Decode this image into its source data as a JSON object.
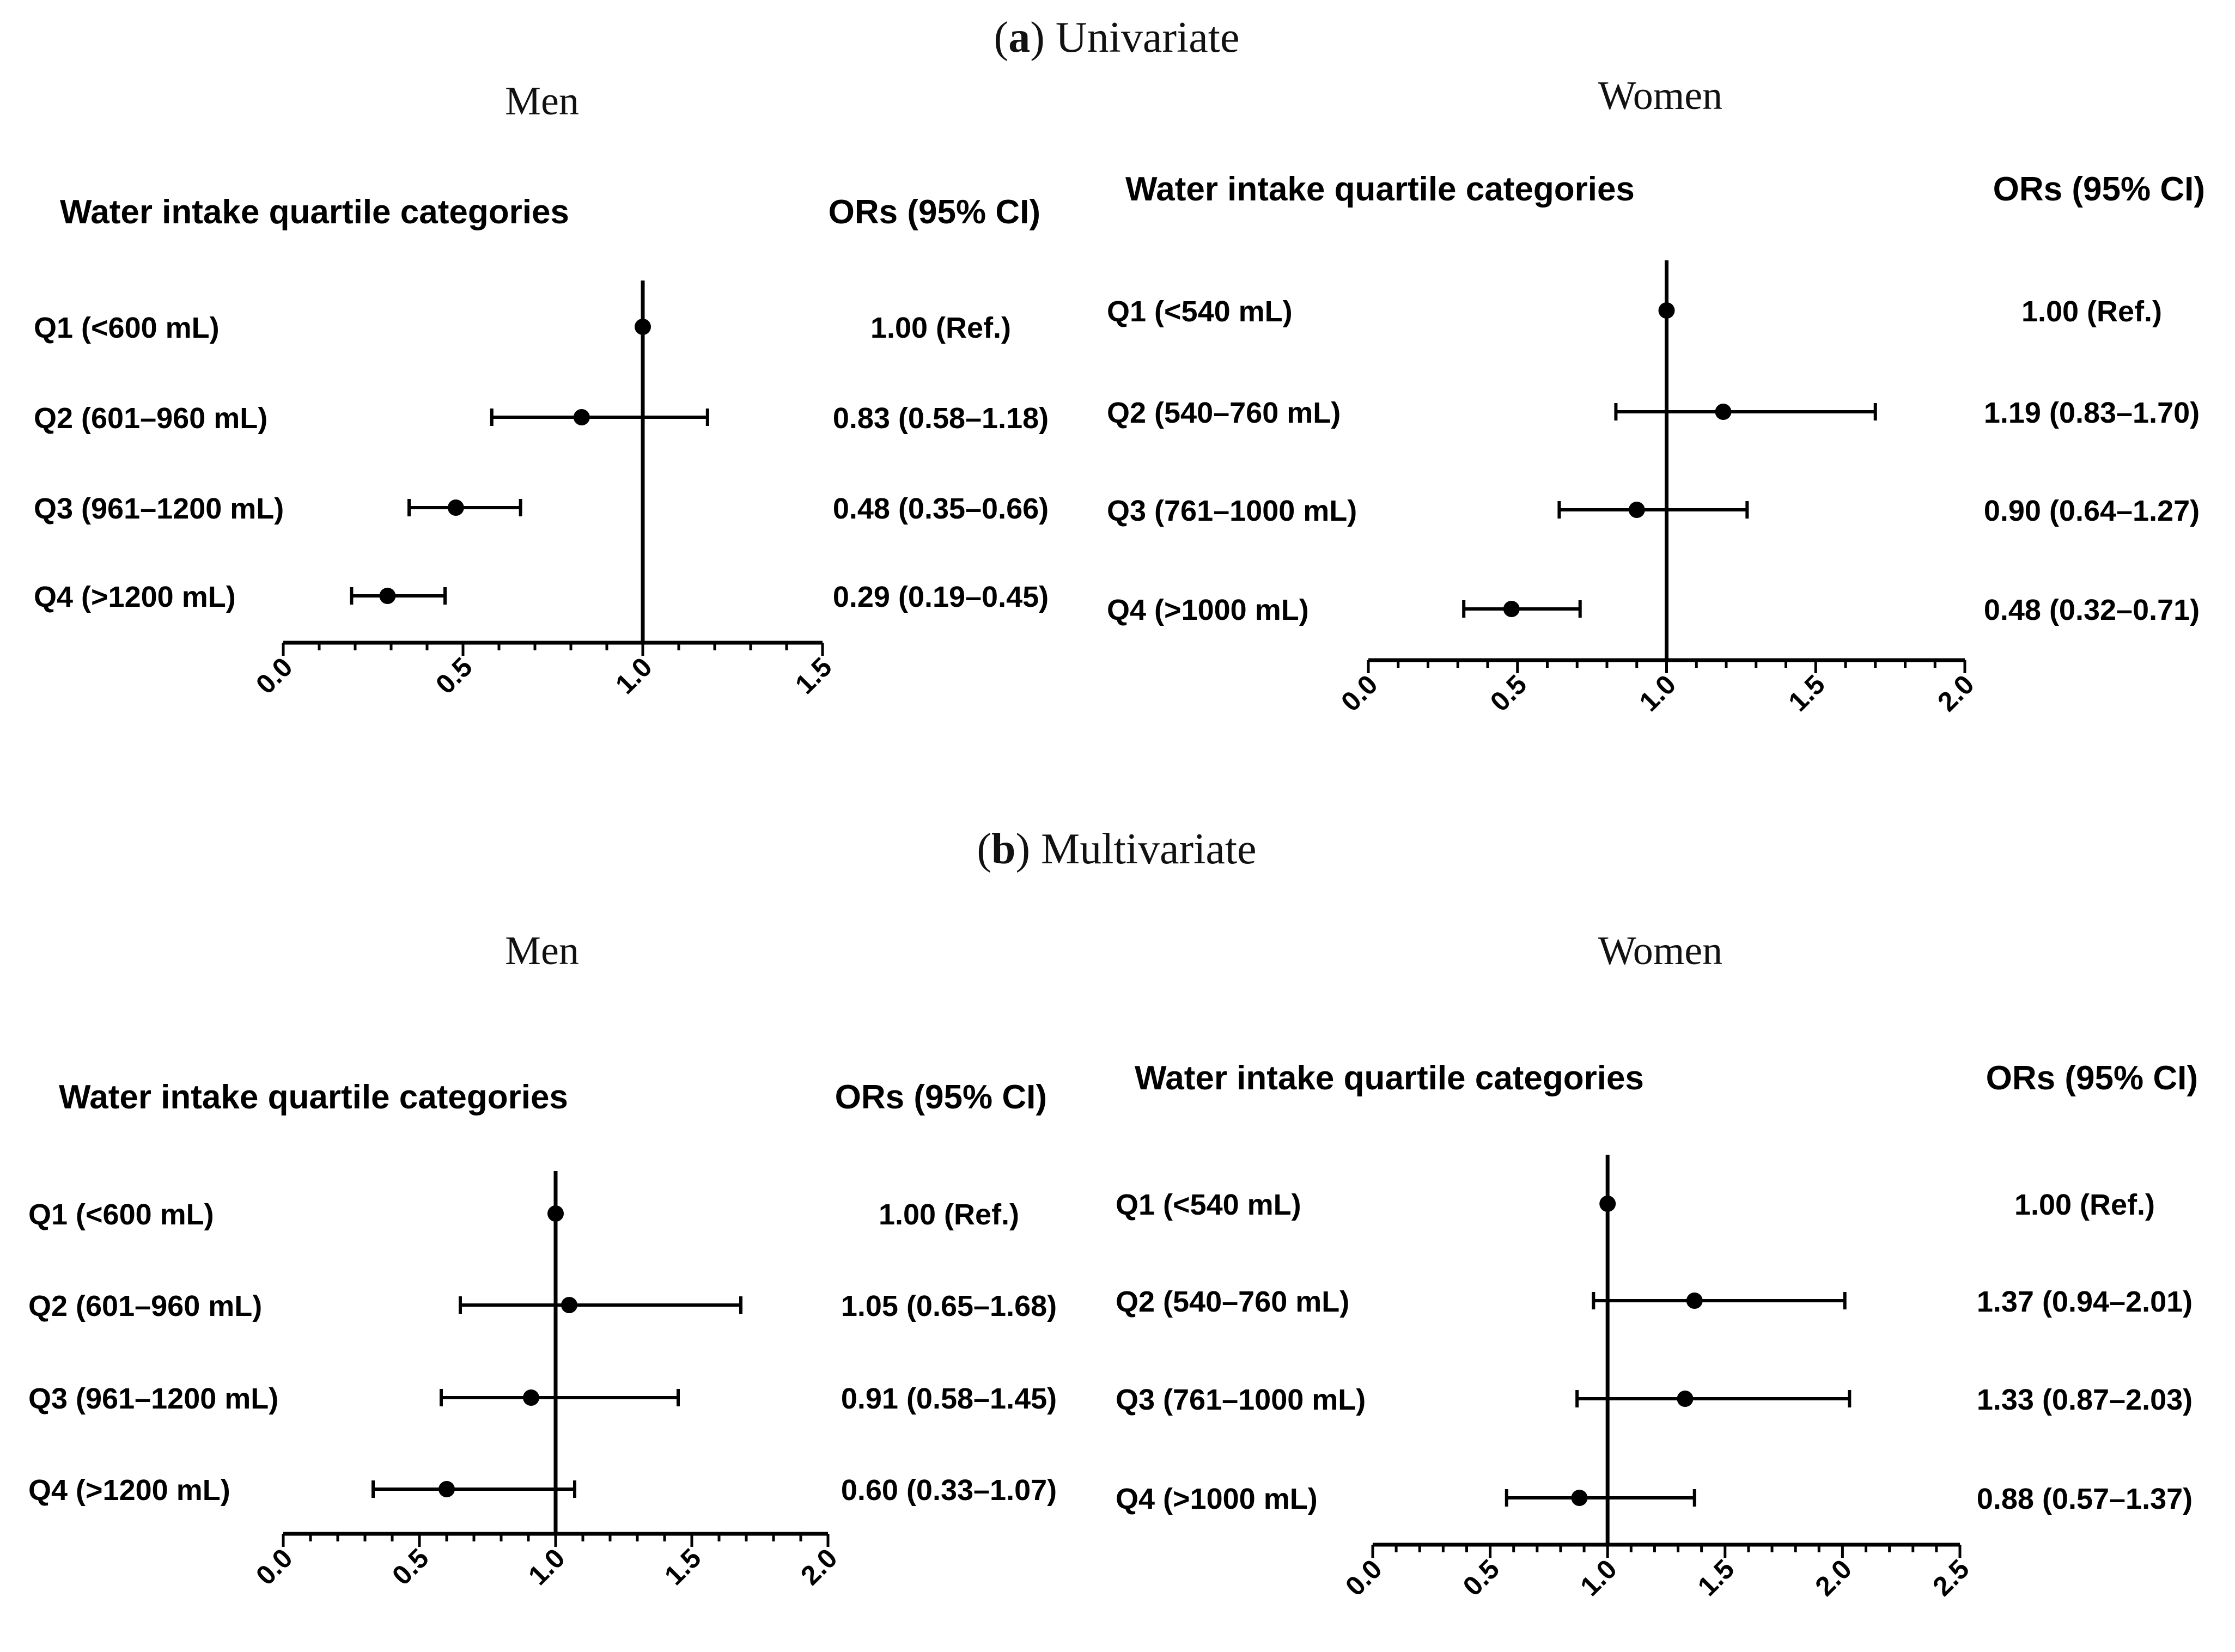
{
  "figure": {
    "sections": [
      {
        "letter": "a",
        "name": "Univariate"
      },
      {
        "letter": "b",
        "name": "Multivariate"
      }
    ]
  },
  "chart_data": [
    {
      "type": "forest",
      "panel": "Univariate",
      "title": "Men",
      "row_header": "Water intake quartile categories",
      "value_header": "ORs (95%  CI)",
      "xlim": [
        0.0,
        1.5
      ],
      "xticks": [
        "0.0",
        "0.5",
        "1.0",
        "1.5"
      ],
      "reference_line": 1.0,
      "rows": [
        {
          "label": "Q1 (<600 mL)",
          "or": 1.0,
          "lo": null,
          "hi": null,
          "text": "1.00 (Ref.)"
        },
        {
          "label": "Q2 (601–960 mL)",
          "or": 0.83,
          "lo": 0.58,
          "hi": 1.18,
          "text": "0.83 (0.58–1.18)"
        },
        {
          "label": "Q3 (961–1200 mL)",
          "or": 0.48,
          "lo": 0.35,
          "hi": 0.66,
          "text": "0.48 (0.35–0.66)"
        },
        {
          "label": "Q4 (>1200 mL)",
          "or": 0.29,
          "lo": 0.19,
          "hi": 0.45,
          "text": "0.29 (0.19–0.45)"
        }
      ]
    },
    {
      "type": "forest",
      "panel": "Univariate",
      "title": "Women",
      "row_header": "Water intake quartile categories",
      "value_header": "ORs (95%  CI)",
      "xlim": [
        0.0,
        2.0
      ],
      "xticks": [
        "0.0",
        "0.5",
        "1.0",
        "1.5",
        "2.0"
      ],
      "reference_line": 1.0,
      "rows": [
        {
          "label": "Q1 (<540 mL)",
          "or": 1.0,
          "lo": null,
          "hi": null,
          "text": "1.00 (Ref.)"
        },
        {
          "label": "Q2 (540–760 mL)",
          "or": 1.19,
          "lo": 0.83,
          "hi": 1.7,
          "text": "1.19 (0.83–1.70)"
        },
        {
          "label": "Q3 (761–1000 mL)",
          "or": 0.9,
          "lo": 0.64,
          "hi": 1.27,
          "text": "0.90 (0.64–1.27)"
        },
        {
          "label": "Q4 (>1000 mL)",
          "or": 0.48,
          "lo": 0.32,
          "hi": 0.71,
          "text": "0.48 (0.32–0.71)"
        }
      ]
    },
    {
      "type": "forest",
      "panel": "Multivariate",
      "title": "Men",
      "row_header": "Water intake quartile categories",
      "value_header": "ORs (95%  CI)",
      "xlim": [
        0.0,
        2.0
      ],
      "xticks": [
        "0.0",
        "0.5",
        "1.0",
        "1.5",
        "2.0"
      ],
      "reference_line": 1.0,
      "rows": [
        {
          "label": "Q1 (<600 mL)",
          "or": 1.0,
          "lo": null,
          "hi": null,
          "text": "1.00 (Ref.)"
        },
        {
          "label": "Q2 (601–960 mL)",
          "or": 1.05,
          "lo": 0.65,
          "hi": 1.68,
          "text": "1.05 (0.65–1.68)"
        },
        {
          "label": "Q3 (961–1200 mL)",
          "or": 0.91,
          "lo": 0.58,
          "hi": 1.45,
          "text": "0.91 (0.58–1.45)"
        },
        {
          "label": "Q4 (>1200 mL)",
          "or": 0.6,
          "lo": 0.33,
          "hi": 1.07,
          "text": "0.60 (0.33–1.07)"
        }
      ]
    },
    {
      "type": "forest",
      "panel": "Multivariate",
      "title": "Women",
      "row_header": "Water intake quartile categories",
      "value_header": "ORs (95%  CI)",
      "xlim": [
        0.0,
        2.5
      ],
      "xticks": [
        "0.0",
        "0.5",
        "1.0",
        "1.5",
        "2.0",
        "2.5"
      ],
      "reference_line": 1.0,
      "rows": [
        {
          "label": "Q1 (<540 mL)",
          "or": 1.0,
          "lo": null,
          "hi": null,
          "text": "1.00 (Ref.)"
        },
        {
          "label": "Q2 (540–760 mL)",
          "or": 1.37,
          "lo": 0.94,
          "hi": 2.01,
          "text": "1.37 (0.94–2.01)"
        },
        {
          "label": "Q3 (761–1000 mL)",
          "or": 1.33,
          "lo": 0.87,
          "hi": 2.03,
          "text": "1.33 (0.87–2.03)"
        },
        {
          "label": "Q4 (>1000 mL)",
          "or": 0.88,
          "lo": 0.57,
          "hi": 1.37,
          "text": "0.88 (0.57–1.37)"
        }
      ]
    }
  ]
}
